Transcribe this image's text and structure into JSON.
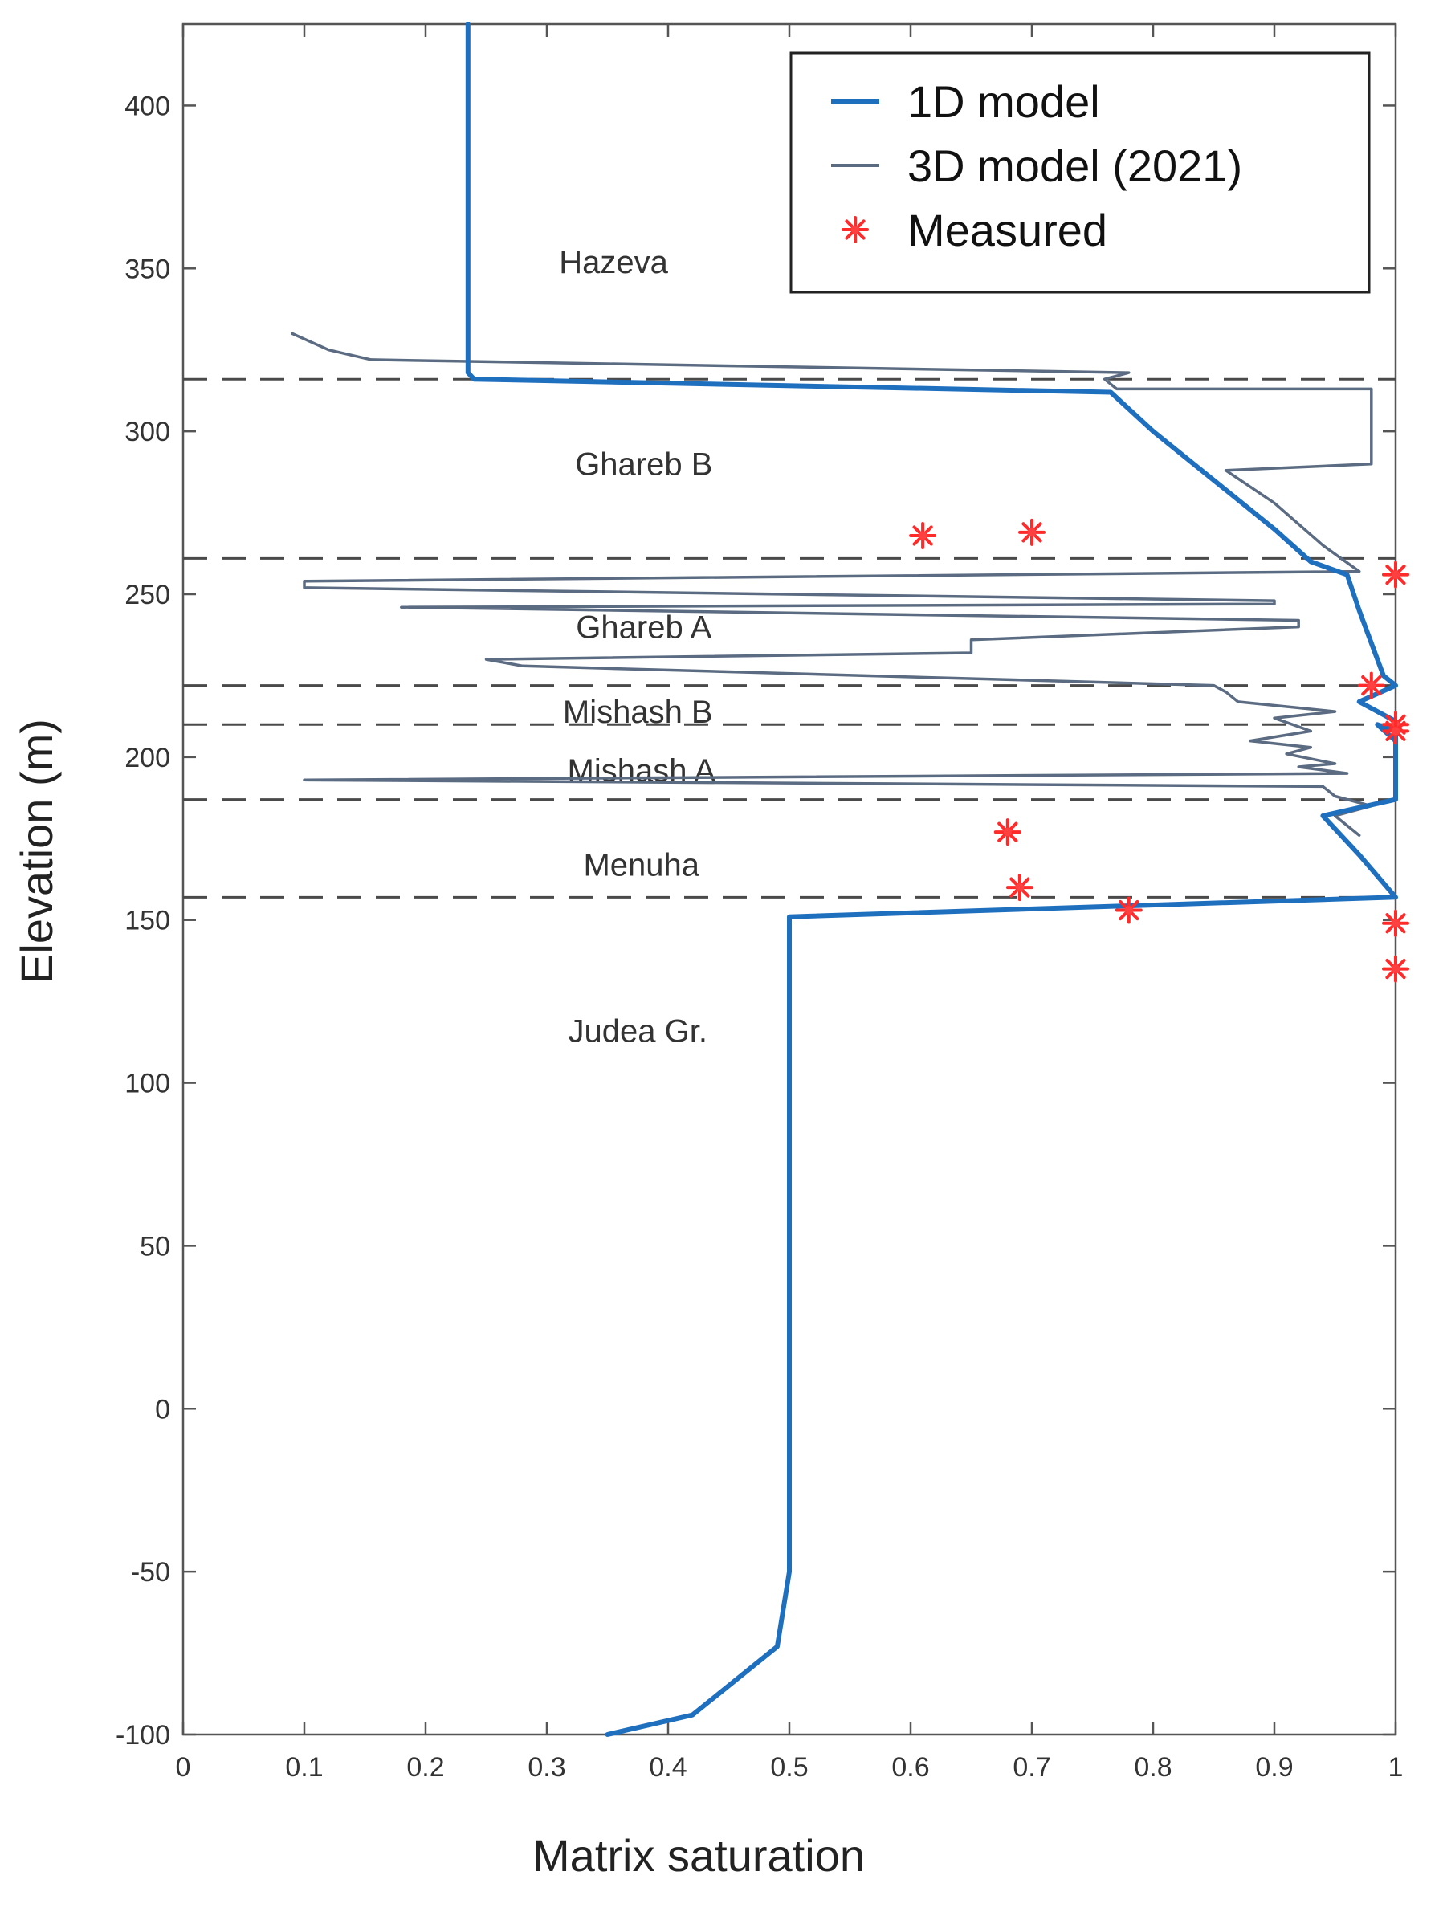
{
  "chart_data": {
    "type": "line",
    "title": "",
    "xlabel": "Matrix saturation",
    "ylabel": "Elevation (m)",
    "xlim": [
      0,
      1
    ],
    "ylim": [
      -100,
      425
    ],
    "xticks": [
      0,
      0.1,
      0.2,
      0.3,
      0.4,
      0.5,
      0.6,
      0.7,
      0.8,
      0.9,
      1
    ],
    "yticks": [
      -100,
      -50,
      0,
      50,
      100,
      150,
      200,
      250,
      300,
      350,
      400
    ],
    "xtick_labels": [
      "0",
      "0.1",
      "0.2",
      "0.3",
      "0.4",
      "0.5",
      "0.6",
      "0.7",
      "0.8",
      "0.9",
      "1"
    ],
    "ytick_labels": [
      "-100",
      "-50",
      "0",
      "50",
      "100",
      "150",
      "200",
      "250",
      "300",
      "350",
      "400"
    ],
    "legend_position": "top-right",
    "legend": [
      "1D model",
      "3D model (2021)",
      "Measured"
    ],
    "boundaries": [
      316,
      261,
      222,
      210,
      187,
      157
    ],
    "unit_labels": [
      {
        "text": "Hazeva",
        "x": 0.355,
        "y": 352
      },
      {
        "text": "Ghareb B",
        "x": 0.38,
        "y": 290
      },
      {
        "text": "Ghareb A",
        "x": 0.38,
        "y": 240
      },
      {
        "text": "Mishash B",
        "x": 0.375,
        "y": 214
      },
      {
        "text": "Mishash A",
        "x": 0.378,
        "y": 196
      },
      {
        "text": "Menuha",
        "x": 0.378,
        "y": 167
      },
      {
        "text": "Judea Gr.",
        "x": 0.375,
        "y": 116
      }
    ],
    "series": [
      {
        "name": "1D model",
        "color": "#1f6fbf",
        "points": [
          [
            0.235,
            425
          ],
          [
            0.235,
            318
          ],
          [
            0.24,
            316
          ],
          [
            0.765,
            312
          ],
          [
            0.8,
            300
          ],
          [
            0.85,
            285
          ],
          [
            0.9,
            270
          ],
          [
            0.93,
            260
          ],
          [
            0.96,
            256
          ],
          [
            0.97,
            245
          ],
          [
            0.98,
            235
          ],
          [
            0.99,
            225
          ],
          [
            1.0,
            222
          ],
          [
            0.97,
            217
          ],
          [
            1.0,
            211
          ],
          [
            1.0,
            205
          ],
          [
            0.985,
            210
          ],
          [
            1.0,
            208
          ],
          [
            1.0,
            187
          ],
          [
            0.94,
            182
          ],
          [
            0.97,
            170
          ],
          [
            1.0,
            157
          ],
          [
            0.5,
            151
          ],
          [
            0.5,
            100
          ],
          [
            0.5,
            50
          ],
          [
            0.5,
            0
          ],
          [
            0.5,
            -50
          ],
          [
            0.49,
            -73
          ],
          [
            0.42,
            -94
          ],
          [
            0.35,
            -100
          ]
        ]
      },
      {
        "name": "3D model (2021)",
        "color": "#5b6b82",
        "points": [
          [
            0.09,
            330
          ],
          [
            0.12,
            325
          ],
          [
            0.155,
            322
          ],
          [
            0.78,
            318
          ],
          [
            0.76,
            316
          ],
          [
            0.77,
            313
          ],
          [
            0.98,
            313
          ],
          [
            0.98,
            290
          ],
          [
            0.86,
            288
          ],
          [
            0.9,
            278
          ],
          [
            0.94,
            265
          ],
          [
            0.97,
            257
          ],
          [
            0.1,
            254
          ],
          [
            0.1,
            252
          ],
          [
            0.9,
            248
          ],
          [
            0.9,
            247
          ],
          [
            0.18,
            246
          ],
          [
            0.92,
            242
          ],
          [
            0.92,
            240
          ],
          [
            0.65,
            236
          ],
          [
            0.65,
            232
          ],
          [
            0.25,
            230
          ],
          [
            0.28,
            228
          ],
          [
            0.85,
            222
          ],
          [
            0.86,
            220
          ],
          [
            0.87,
            217
          ],
          [
            0.95,
            214
          ],
          [
            0.9,
            212
          ],
          [
            0.93,
            208
          ],
          [
            0.88,
            205
          ],
          [
            0.93,
            203
          ],
          [
            0.91,
            201
          ],
          [
            0.95,
            198
          ],
          [
            0.92,
            197
          ],
          [
            0.96,
            195
          ],
          [
            0.1,
            193
          ],
          [
            0.94,
            191
          ],
          [
            0.95,
            188
          ],
          [
            0.98,
            185
          ],
          [
            0.95,
            182
          ],
          [
            0.96,
            179
          ],
          [
            0.97,
            176
          ]
        ]
      }
    ],
    "measured": [
      [
        0.61,
        268
      ],
      [
        0.7,
        269
      ],
      [
        1.0,
        256
      ],
      [
        0.98,
        222
      ],
      [
        1.0,
        210
      ],
      [
        1.0,
        208
      ],
      [
        0.68,
        177
      ],
      [
        0.69,
        160
      ],
      [
        0.78,
        153
      ],
      [
        1.0,
        149
      ],
      [
        1.0,
        135
      ]
    ]
  }
}
